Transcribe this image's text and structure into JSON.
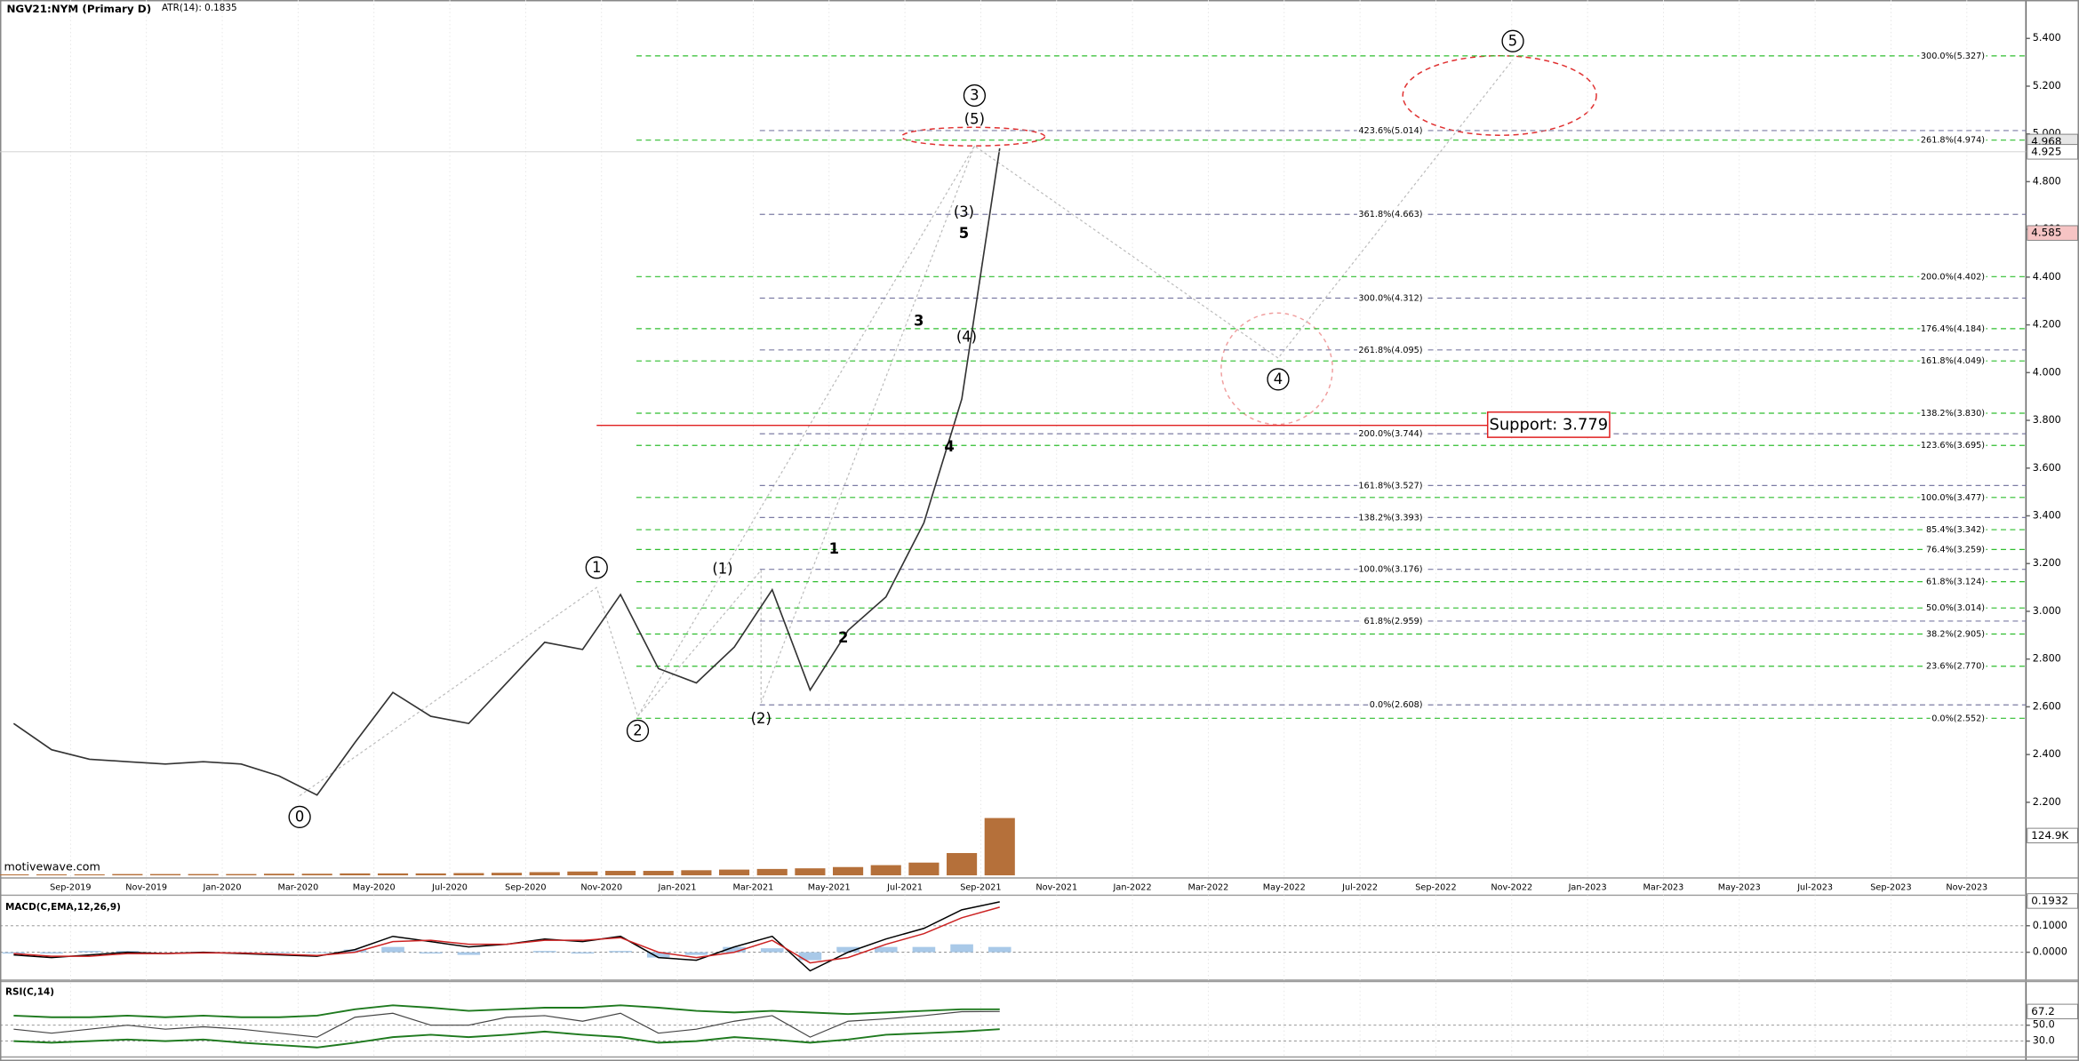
{
  "chart_data": [
    {
      "type": "line",
      "title": "NGV21:NYM (Primary D)",
      "subtitle": "ATR(14): 0.1835",
      "watermark": "motivewave.com",
      "x": [
        "Jul-2019",
        "Aug-2019",
        "Sep-2019",
        "Oct-2019",
        "Nov-2019",
        "Dec-2019",
        "Jan-2020",
        "Feb-2020",
        "Mar-2020",
        "Apr-2020",
        "May-2020",
        "Jun-2020",
        "Jul-2020",
        "Aug-2020",
        "Sep-2020",
        "Oct-2020",
        "Nov-2020",
        "Dec-2020",
        "Jan-2021",
        "Feb-2021",
        "Mar-2021",
        "Apr-2021",
        "May-2021",
        "Jun-2021",
        "Jul-2021",
        "Aug-2021",
        "Sep-2021"
      ],
      "series": [
        {
          "color": "#333333",
          "values": [
            2.53,
            2.42,
            2.38,
            2.37,
            2.36,
            2.37,
            2.36,
            2.31,
            2.23,
            2.45,
            2.66,
            2.56,
            2.53,
            2.7,
            2.87,
            2.84,
            3.07,
            2.76,
            2.7,
            2.85,
            3.09,
            2.67,
            2.92,
            3.06,
            3.37,
            3.89,
            4.94
          ]
        }
      ],
      "xlim": [
        "Jul-2019",
        "Dec-2023"
      ],
      "xticks": [
        "Sep-2019",
        "Nov-2019",
        "Jan-2020",
        "Mar-2020",
        "May-2020",
        "Jul-2020",
        "Sep-2020",
        "Nov-2020",
        "Jan-2021",
        "Mar-2021",
        "May-2021",
        "Jul-2021",
        "Sep-2021",
        "Nov-2021",
        "Jan-2022",
        "Mar-2022",
        "May-2022",
        "Jul-2022",
        "Sep-2022",
        "Nov-2022",
        "Jan-2023",
        "Mar-2023",
        "May-2023",
        "Jul-2023",
        "Sep-2023",
        "Nov-2023"
      ],
      "ylim": [
        1.894,
        5.561
      ],
      "yticks": [
        {
          "value": 2.2,
          "label": "2.200"
        },
        {
          "value": 2.4,
          "label": "2.400"
        },
        {
          "value": 2.6,
          "label": "2.600"
        },
        {
          "value": 2.8,
          "label": "2.800"
        },
        {
          "value": 3.0,
          "label": "3.000"
        },
        {
          "value": 3.2,
          "label": "3.200"
        },
        {
          "value": 3.4,
          "label": "3.400"
        },
        {
          "value": 3.6,
          "label": "3.600"
        },
        {
          "value": 3.8,
          "label": "3.800"
        },
        {
          "value": 4.0,
          "label": "4.000"
        },
        {
          "value": 4.2,
          "label": "4.200"
        },
        {
          "value": 4.4,
          "label": "4.400"
        },
        {
          "value": 4.6,
          "label": "4.600"
        },
        {
          "value": 4.8,
          "label": "4.800"
        },
        {
          "value": 5.0,
          "label": "5.000"
        },
        {
          "value": 5.2,
          "label": "5.200"
        },
        {
          "value": 5.4,
          "label": "5.400"
        }
      ],
      "volume": {
        "color": "#b5703a",
        "values": [
          3,
          3,
          3,
          4,
          4,
          4,
          4,
          5,
          5,
          6,
          6,
          6,
          7,
          8,
          10,
          12,
          14,
          14,
          16,
          18,
          20,
          22,
          26,
          32,
          40,
          70,
          180
        ],
        "ylim": [
          0,
          250
        ],
        "tag": {
          "value": 124.9,
          "label": "124.9K"
        }
      },
      "price_tags": [
        {
          "value": 4.968,
          "color": "#e6e6e6"
        },
        {
          "value": 4.925,
          "color": "#ffffff",
          "line": true
        },
        {
          "value": 4.585,
          "color": "#f6c4c4"
        }
      ],
      "fib_levels_a": {
        "color": "#2ebd2e",
        "levels": [
          {
            "value": 5.327,
            "label": "300.0%(5.327)"
          },
          {
            "value": 4.974,
            "label": "261.8%(4.974)"
          },
          {
            "value": 4.402,
            "label": "200.0%(4.402)"
          },
          {
            "value": 4.184,
            "label": "176.4%(4.184)"
          },
          {
            "value": 4.049,
            "label": "161.8%(4.049)"
          },
          {
            "value": 3.83,
            "label": "138.2%(3.830)"
          },
          {
            "value": 3.695,
            "label": "123.6%(3.695)"
          },
          {
            "value": 3.477,
            "label": "100.0%(3.477)"
          },
          {
            "value": 3.342,
            "label": "85.4%(3.342)"
          },
          {
            "value": 3.259,
            "label": "76.4%(3.259)"
          },
          {
            "value": 3.124,
            "label": "61.8%(3.124)"
          },
          {
            "value": 3.014,
            "label": "50.0%(3.014)"
          },
          {
            "value": 2.905,
            "label": "38.2%(2.905)"
          },
          {
            "value": 2.77,
            "label": "23.6%(2.770)"
          },
          {
            "value": 2.552,
            "label": "0.0%(2.552)"
          }
        ]
      },
      "fib_levels_b": {
        "color": "#7c7ca4",
        "levels": [
          {
            "value": 5.014,
            "label": "423.6%(5.014)"
          },
          {
            "value": 4.663,
            "label": "361.8%(4.663)"
          },
          {
            "value": 4.312,
            "label": "300.0%(4.312)"
          },
          {
            "value": 4.095,
            "label": "261.8%(4.095)"
          },
          {
            "value": 3.744,
            "label": "200.0%(3.744)"
          },
          {
            "value": 3.527,
            "label": "161.8%(3.527)"
          },
          {
            "value": 3.393,
            "label": "138.2%(3.393)"
          },
          {
            "value": 3.176,
            "label": "100.0%(3.176)"
          },
          {
            "value": 2.959,
            "label": "61.8%(2.959)"
          },
          {
            "value": 2.608,
            "label": "0.0%(2.608)"
          }
        ]
      },
      "support": {
        "label": "Support: 3.779",
        "value": 3.779,
        "color": "#e02020"
      },
      "wave_labels": [
        {
          "text": "0",
          "style": "circle"
        },
        {
          "text": "1",
          "style": "circle"
        },
        {
          "text": "2",
          "style": "circle"
        },
        {
          "text": "3",
          "style": "circle"
        },
        {
          "text": "4",
          "style": "circle"
        },
        {
          "text": "5",
          "style": "circle"
        },
        {
          "text": "(1)",
          "style": "paren"
        },
        {
          "text": "(2)",
          "style": "paren"
        },
        {
          "text": "(3)",
          "style": "paren"
        },
        {
          "text": "(4)",
          "style": "paren"
        },
        {
          "text": "(5)",
          "style": "paren"
        },
        {
          "text": "1",
          "style": "bold"
        },
        {
          "text": "2",
          "style": "bold"
        },
        {
          "text": "3",
          "style": "bold"
        },
        {
          "text": "4",
          "style": "bold"
        },
        {
          "text": "5",
          "style": "bold"
        }
      ]
    },
    {
      "type": "macd",
      "title": "MACD(C,EMA,12,26,9)",
      "x": [
        "Jul-2019",
        "Aug-2019",
        "Sep-2019",
        "Oct-2019",
        "Nov-2019",
        "Dec-2019",
        "Jan-2020",
        "Feb-2020",
        "Mar-2020",
        "Apr-2020",
        "May-2020",
        "Jun-2020",
        "Jul-2020",
        "Aug-2020",
        "Sep-2020",
        "Oct-2020",
        "Nov-2020",
        "Dec-2020",
        "Jan-2021",
        "Feb-2021",
        "Mar-2021",
        "Apr-2021",
        "May-2021",
        "Jun-2021",
        "Jul-2021",
        "Aug-2021",
        "Sep-2021"
      ],
      "series": [
        {
          "type": "histogram",
          "color": "#a9c9e8",
          "values": [
            -0.005,
            -0.005,
            0.005,
            0.005,
            0,
            0.002,
            -0.002,
            -0.003,
            -0.003,
            0.01,
            0.02,
            -0.005,
            -0.01,
            0,
            0.005,
            -0.005,
            0.005,
            -0.02,
            -0.01,
            0.02,
            0.015,
            -0.03,
            0.02,
            0.02,
            0.02,
            0.03,
            0.02
          ]
        },
        {
          "type": "line",
          "color": "#000000",
          "values": [
            -0.01,
            -0.02,
            -0.01,
            0.0,
            -0.005,
            0.0,
            -0.005,
            -0.01,
            -0.015,
            0.01,
            0.06,
            0.04,
            0.02,
            0.03,
            0.05,
            0.04,
            0.06,
            -0.02,
            -0.03,
            0.02,
            0.06,
            -0.07,
            0.0,
            0.05,
            0.09,
            0.16,
            0.19
          ]
        },
        {
          "type": "line",
          "color": "#cc2222",
          "values": [
            -0.005,
            -0.015,
            -0.015,
            -0.005,
            -0.005,
            -0.002,
            -0.003,
            -0.007,
            -0.012,
            0.0,
            0.04,
            0.045,
            0.03,
            0.03,
            0.045,
            0.045,
            0.055,
            0.0,
            -0.02,
            0.0,
            0.045,
            -0.04,
            -0.02,
            0.03,
            0.07,
            0.13,
            0.17
          ]
        }
      ],
      "ylim": [
        -0.095,
        0.205
      ],
      "yticks": [
        {
          "value": 0.1,
          "label": "0.1000"
        },
        {
          "value": 0,
          "label": "0.0000"
        }
      ],
      "tag": {
        "value": 0.1932,
        "color": "#ffffff"
      }
    },
    {
      "type": "rsi",
      "title": "RSI(C,14)",
      "x": [
        "Jul-2019",
        "Aug-2019",
        "Sep-2019",
        "Oct-2019",
        "Nov-2019",
        "Dec-2019",
        "Jan-2020",
        "Feb-2020",
        "Mar-2020",
        "Apr-2020",
        "May-2020",
        "Jun-2020",
        "Jul-2020",
        "Aug-2020",
        "Sep-2020",
        "Oct-2020",
        "Nov-2020",
        "Dec-2020",
        "Jan-2021",
        "Feb-2021",
        "Mar-2021",
        "Apr-2021",
        "May-2021",
        "Jun-2021",
        "Jul-2021",
        "Aug-2021",
        "Sep-2021"
      ],
      "series": [
        {
          "type": "line",
          "color": "#1f7a1f",
          "values": [
            62,
            60,
            60,
            62,
            60,
            62,
            60,
            60,
            62,
            70,
            75,
            72,
            68,
            70,
            72,
            72,
            75,
            72,
            68,
            66,
            68,
            66,
            64,
            66,
            68,
            70,
            70
          ]
        },
        {
          "type": "line",
          "color": "#1f7a1f",
          "values": [
            30,
            28,
            30,
            32,
            30,
            32,
            28,
            25,
            22,
            28,
            35,
            38,
            35,
            38,
            42,
            38,
            35,
            28,
            30,
            35,
            32,
            28,
            32,
            38,
            40,
            42,
            45
          ]
        },
        {
          "type": "line",
          "color": "#444444",
          "values": [
            45,
            40,
            45,
            50,
            45,
            48,
            45,
            40,
            35,
            60,
            65,
            50,
            50,
            60,
            62,
            55,
            65,
            40,
            45,
            55,
            62,
            35,
            55,
            58,
            62,
            67,
            67.2
          ]
        }
      ],
      "ylim": [
        13.3,
        101.7
      ],
      "yticks": [
        {
          "value": 50,
          "label": "50.0"
        },
        {
          "value": 30,
          "label": "30.0"
        }
      ],
      "tag": {
        "value": 67.2,
        "color": "#ffffff"
      }
    }
  ]
}
